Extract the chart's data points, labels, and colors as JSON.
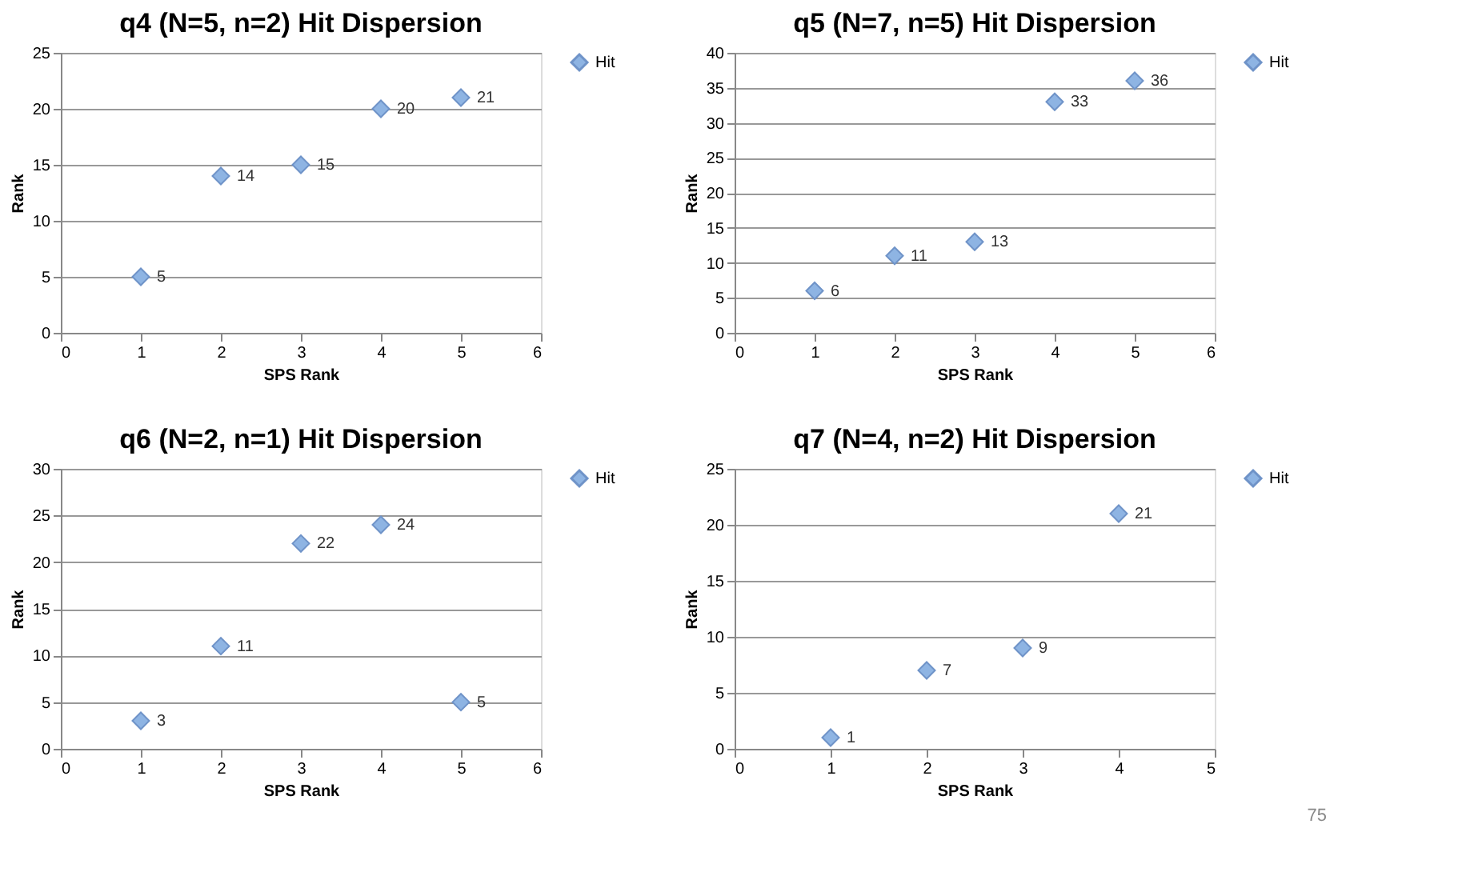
{
  "chart_data": [
    {
      "type": "scatter",
      "title": "q4 (N=5, n=2) Hit Dispersion",
      "xlabel": "SPS Rank",
      "ylabel": "Rank",
      "x": [
        1,
        2,
        3,
        4,
        5
      ],
      "xlim": [
        0,
        6
      ],
      "xticks": [
        0,
        1,
        2,
        3,
        4,
        5,
        6
      ],
      "ylim": [
        0,
        25
      ],
      "yticks": [
        0,
        5,
        10,
        15,
        20,
        25
      ],
      "grid": "y",
      "legend": "right",
      "marker": "diamond",
      "data_labels": true,
      "series": [
        {
          "name": "Hit",
          "color": "#8eb4e3",
          "values": [
            5,
            14,
            15,
            20,
            21
          ]
        }
      ]
    },
    {
      "type": "scatter",
      "title": "q5 (N=7, n=5) Hit Dispersion",
      "xlabel": "SPS Rank",
      "ylabel": "Rank",
      "x": [
        1,
        2,
        3,
        4,
        5
      ],
      "xlim": [
        0,
        6
      ],
      "xticks": [
        0,
        1,
        2,
        3,
        4,
        5,
        6
      ],
      "ylim": [
        0,
        40
      ],
      "yticks": [
        0,
        5,
        10,
        15,
        20,
        25,
        30,
        35,
        40
      ],
      "grid": "y",
      "legend": "right",
      "marker": "diamond",
      "data_labels": true,
      "series": [
        {
          "name": "Hit",
          "color": "#8eb4e3",
          "values": [
            6,
            11,
            13,
            33,
            36
          ]
        }
      ]
    },
    {
      "type": "scatter",
      "title": "q6 (N=2, n=1) Hit Dispersion",
      "xlabel": "SPS Rank",
      "ylabel": "Rank",
      "x": [
        1,
        2,
        3,
        4,
        5
      ],
      "xlim": [
        0,
        6
      ],
      "xticks": [
        0,
        1,
        2,
        3,
        4,
        5,
        6
      ],
      "ylim": [
        0,
        30
      ],
      "yticks": [
        0,
        5,
        10,
        15,
        20,
        25,
        30
      ],
      "grid": "y",
      "legend": "right",
      "marker": "diamond",
      "data_labels": true,
      "series": [
        {
          "name": "Hit",
          "color": "#8eb4e3",
          "values": [
            3,
            11,
            22,
            24,
            5
          ]
        }
      ]
    },
    {
      "type": "scatter",
      "title": "q7 (N=4, n=2) Hit Dispersion",
      "xlabel": "SPS Rank",
      "ylabel": "Rank",
      "x": [
        1,
        2,
        3,
        4
      ],
      "xlim": [
        0,
        5
      ],
      "xticks": [
        0,
        1,
        2,
        3,
        4,
        5
      ],
      "ylim": [
        0,
        25
      ],
      "yticks": [
        0,
        5,
        10,
        15,
        20,
        25
      ],
      "grid": "y",
      "legend": "right",
      "marker": "diamond",
      "data_labels": true,
      "annotations": [
        "75"
      ],
      "series": [
        {
          "name": "Hit",
          "color": "#8eb4e3",
          "values": [
            1,
            7,
            9,
            21
          ]
        }
      ]
    }
  ]
}
